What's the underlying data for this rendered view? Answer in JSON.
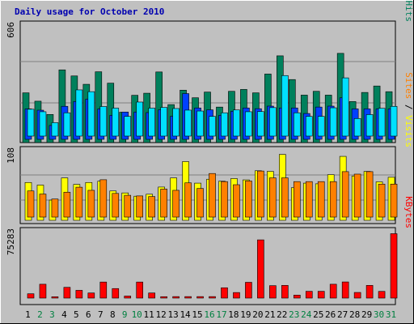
{
  "chart_data": {
    "title": "Daily usage for October 2010",
    "days": [
      "1",
      "2",
      "3",
      "4",
      "5",
      "6",
      "7",
      "8",
      "9",
      "10",
      "11",
      "12",
      "13",
      "14",
      "15",
      "16",
      "17",
      "18",
      "19",
      "20",
      "21",
      "22",
      "23",
      "24",
      "25",
      "26",
      "27",
      "28",
      "29",
      "30",
      "31"
    ],
    "weekend_days": [
      "2",
      "3",
      "9",
      "10",
      "16",
      "17",
      "23",
      "24",
      "30",
      "31"
    ],
    "colors": {
      "frame": "#c0c0c0",
      "plot_bg": "#c0c0c0",
      "title": "#0000b0",
      "hits": "#00805c",
      "files": "#0040ff",
      "pages": "#00e0ff",
      "visits": "#ffff00",
      "sites": "#ff8000",
      "kbytes": "#ff0000",
      "weekday_label": "#000000",
      "weekend_label": "#008040"
    },
    "panels": [
      {
        "type": "bar",
        "max_label": "606",
        "ymax": 606,
        "legend": [
          {
            "label": "Pages",
            "color": "#00e0ff"
          },
          {
            "label": "Files",
            "color": "#0040ff"
          },
          {
            "label": "Hits",
            "color": "#00805c"
          }
        ],
        "series": [
          {
            "name": "Hits",
            "color": "#00805c",
            "values": [
              262,
              218,
              148,
              383,
              351,
              307,
              373,
              313,
              160,
              249,
              260,
              372,
              200,
              276,
              236,
              266,
              187,
              270,
              280,
              262,
              361,
              457,
              332,
              250,
              270,
              250,
              470,
              216,
              264,
              298,
              268
            ]
          },
          {
            "name": "Files",
            "color": "#0040ff",
            "values": [
              165,
              158,
              75,
              179,
              205,
              218,
              165,
              130,
              148,
              148,
              145,
              160,
              125,
              248,
              170,
              160,
              130,
              152,
              170,
              166,
              180,
              170,
              170,
              140,
              175,
              180,
              225,
              165,
              165,
              165,
              165
            ]
          },
          {
            "name": "Pages",
            "color": "#00e0ff",
            "values": [
              150,
              136,
              75,
              130,
              258,
              248,
              165,
              156,
              110,
              190,
              156,
              160,
              154,
              145,
              140,
              110,
              130,
              146,
              136,
              137,
              159,
              338,
              130,
              110,
              110,
              158,
              325,
              98,
              120,
              155,
              166
            ]
          }
        ]
      },
      {
        "type": "bar",
        "max_label": "108",
        "ymax": 108,
        "legend": [
          {
            "label": "Sites",
            "color": "#ff8000"
          },
          {
            "label": "Visits",
            "color": "#ffff00"
          }
        ],
        "series": [
          {
            "name": "Visits",
            "color": "#ffff00",
            "values": [
              58,
              54,
              31,
              65,
              55,
              58,
              60,
              45,
              42,
              37,
              40,
              51,
              65,
              90,
              57,
              63,
              60,
              64,
              62,
              76,
              75,
              101,
              50,
              57,
              56,
              70,
              98,
              68,
              75,
              59,
              66
            ]
          },
          {
            "name": "Sites",
            "color": "#ff8000",
            "values": [
              42,
              37,
              29,
              40,
              48,
              43,
              60,
              38,
              35,
              34,
              33,
              45,
              43,
              55,
              46,
              70,
              57,
              52,
              58,
              74,
              63,
              63,
              57,
              57,
              57,
              57,
              73,
              69,
              73,
              53,
              53
            ]
          }
        ]
      },
      {
        "type": "bar",
        "max_label": "75283",
        "ymax": 75283,
        "legend": [
          {
            "label": "KBytes",
            "color": "#ff0000"
          }
        ],
        "series": [
          {
            "name": "KBytes",
            "color": "#ff0000",
            "values": [
              4900,
              15700,
              1500,
              12200,
              8800,
              5800,
              18200,
              10800,
              2300,
              18200,
              5800,
              1600,
              1700,
              1700,
              1700,
              1700,
              11700,
              6300,
              17900,
              66000,
              14100,
              14400,
              3400,
              7700,
              7700,
              15700,
              18300,
              6400,
              14400,
              7600,
              73000
            ]
          }
        ]
      }
    ]
  }
}
